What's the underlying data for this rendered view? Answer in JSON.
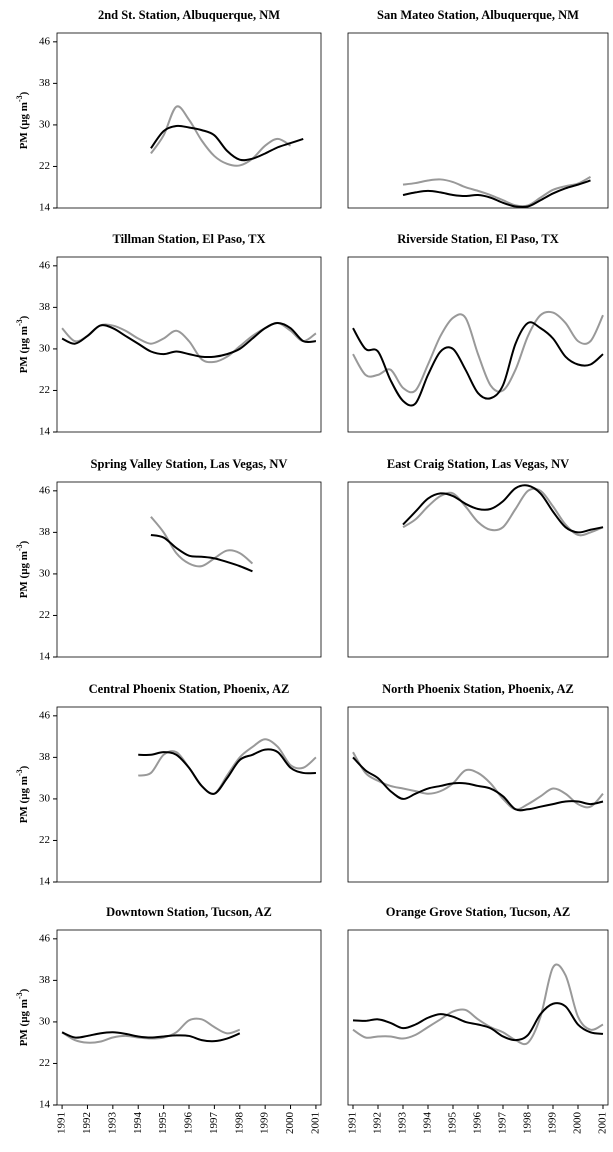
{
  "chart_data": [
    {
      "type": "line",
      "title": "2nd St. Station, Albuquerque, NM",
      "y_label": "PM (µg m",
      "y_label_sup": "-3",
      "y_label_end": ")",
      "x": [
        1991,
        1991.5,
        1992,
        1992.5,
        1993,
        1993.5,
        1994,
        1994.5,
        1995,
        1995.5,
        1996,
        1996.5,
        1997,
        1997.5,
        1998,
        1998.5,
        1999,
        1999.5,
        2000,
        2000.5,
        2001
      ],
      "xlim": [
        1990.8,
        2001.2
      ],
      "ylim": [
        14,
        47.7
      ],
      "yticks": [
        14,
        22,
        30,
        38,
        46
      ],
      "series": [
        {
          "color": "#999999",
          "values": [
            null,
            null,
            null,
            null,
            null,
            null,
            null,
            24.5,
            28,
            33.5,
            31,
            27,
            24,
            22.5,
            22.2,
            23.5,
            26,
            27.3,
            26,
            null,
            null
          ]
        },
        {
          "color": "#000000",
          "values": [
            null,
            null,
            null,
            null,
            null,
            null,
            null,
            25.5,
            28.8,
            29.8,
            29.5,
            29,
            28,
            25,
            23.3,
            23.5,
            24.5,
            25.7,
            26.5,
            27.3,
            null
          ]
        }
      ]
    },
    {
      "type": "line",
      "title": "San Mateo Station, Albuquerque, NM",
      "x": [
        1991,
        1991.5,
        1992,
        1992.5,
        1993,
        1993.5,
        1994,
        1994.5,
        1995,
        1995.5,
        1996,
        1996.5,
        1997,
        1997.5,
        1998,
        1998.5,
        1999,
        1999.5,
        2000,
        2000.5,
        2001
      ],
      "xlim": [
        1990.8,
        2001.2
      ],
      "ylim": [
        14,
        47.7
      ],
      "series": [
        {
          "color": "#999999",
          "values": [
            null,
            null,
            null,
            null,
            18.5,
            18.8,
            19.3,
            19.5,
            19,
            18,
            17.3,
            16.5,
            15.5,
            14.5,
            14.5,
            16,
            17.5,
            18.2,
            18.7,
            20,
            null
          ]
        },
        {
          "color": "#000000",
          "values": [
            null,
            null,
            null,
            null,
            16.5,
            17,
            17.3,
            17,
            16.5,
            16.3,
            16.5,
            16,
            15,
            14.3,
            14.3,
            15.5,
            16.8,
            17.8,
            18.5,
            19.3,
            null
          ]
        }
      ]
    },
    {
      "type": "line",
      "title": "Tillman Station, El Paso, TX",
      "y_label": "PM (µg m",
      "y_label_sup": "-3",
      "y_label_end": ")",
      "x": [
        1991,
        1991.5,
        1992,
        1992.5,
        1993,
        1993.5,
        1994,
        1994.5,
        1995,
        1995.5,
        1996,
        1996.5,
        1997,
        1997.5,
        1998,
        1998.5,
        1999,
        1999.5,
        2000,
        2000.5,
        2001
      ],
      "xlim": [
        1990.8,
        2001.2
      ],
      "ylim": [
        14,
        47.7
      ],
      "yticks": [
        14,
        22,
        30,
        38,
        46
      ],
      "series": [
        {
          "color": "#999999",
          "values": [
            34,
            31.5,
            32.5,
            34.5,
            34.5,
            33.5,
            32,
            31,
            32,
            33.5,
            31.5,
            28,
            27.5,
            28.5,
            30.5,
            32.5,
            34,
            35,
            33.5,
            31.5,
            33
          ]
        },
        {
          "color": "#000000",
          "values": [
            32,
            31,
            32.5,
            34.5,
            34,
            32.5,
            31,
            29.5,
            29,
            29.5,
            29,
            28.5,
            28.5,
            29,
            30,
            32,
            34,
            35,
            34,
            31.5,
            31.5
          ]
        }
      ]
    },
    {
      "type": "line",
      "title": "Riverside Station, El Paso, TX",
      "x": [
        1991,
        1991.5,
        1992,
        1992.5,
        1993,
        1993.5,
        1994,
        1994.5,
        1995,
        1995.5,
        1996,
        1996.5,
        1997,
        1997.5,
        1998,
        1998.5,
        1999,
        1999.5,
        2000,
        2000.5,
        2001
      ],
      "xlim": [
        1990.8,
        2001.2
      ],
      "ylim": [
        14,
        47.7
      ],
      "series": [
        {
          "color": "#999999",
          "values": [
            29,
            25,
            25,
            26,
            22.5,
            22,
            27,
            32.5,
            36,
            36,
            29,
            23,
            22,
            26,
            32.5,
            36.5,
            37,
            35,
            31.5,
            31.5,
            36.5
          ]
        },
        {
          "color": "#000000",
          "values": [
            34,
            30,
            29.5,
            24,
            20,
            19.5,
            25,
            29.5,
            30,
            26,
            21.5,
            20.5,
            23,
            31,
            35,
            34,
            32,
            28.5,
            27,
            27,
            29
          ]
        }
      ]
    },
    {
      "type": "line",
      "title": "Spring Valley Station, Las Vegas, NV",
      "y_label": "PM (µg m",
      "y_label_sup": "-3",
      "y_label_end": ")",
      "x": [
        1991,
        1991.5,
        1992,
        1992.5,
        1993,
        1993.5,
        1994,
        1994.5,
        1995,
        1995.5,
        1996,
        1996.5,
        1997,
        1997.5,
        1998,
        1998.5,
        1999,
        1999.5,
        2000,
        2000.5,
        2001
      ],
      "xlim": [
        1990.8,
        2001.2
      ],
      "ylim": [
        14,
        47.7
      ],
      "yticks": [
        14,
        22,
        30,
        38,
        46
      ],
      "series": [
        {
          "color": "#999999",
          "values": [
            null,
            null,
            null,
            null,
            null,
            null,
            null,
            41,
            38,
            34,
            32,
            31.5,
            33,
            34.5,
            34,
            32,
            null,
            null,
            null,
            null,
            null
          ]
        },
        {
          "color": "#000000",
          "values": [
            null,
            null,
            null,
            null,
            null,
            null,
            null,
            37.5,
            37,
            35,
            33.5,
            33.3,
            33,
            32.3,
            31.5,
            30.5,
            null,
            null,
            null,
            null,
            null
          ]
        }
      ]
    },
    {
      "type": "line",
      "title": "East Craig Station, Las Vegas, NV",
      "x": [
        1991,
        1991.5,
        1992,
        1992.5,
        1993,
        1993.5,
        1994,
        1994.5,
        1995,
        1995.5,
        1996,
        1996.5,
        1997,
        1997.5,
        1998,
        1998.5,
        1999,
        1999.5,
        2000,
        2000.5,
        2001
      ],
      "xlim": [
        1990.8,
        2001.2
      ],
      "ylim": [
        14,
        47.7
      ],
      "series": [
        {
          "color": "#999999",
          "values": [
            null,
            null,
            null,
            null,
            39,
            40.5,
            43,
            45,
            45.5,
            43,
            40,
            38.5,
            39,
            42.5,
            46,
            46,
            43,
            39.5,
            37.5,
            38,
            39
          ]
        },
        {
          "color": "#000000",
          "values": [
            null,
            null,
            null,
            null,
            39.5,
            42,
            44.5,
            45.5,
            45,
            43.5,
            42.5,
            42.5,
            44,
            46.5,
            47,
            45.5,
            42,
            39,
            38,
            38.5,
            39
          ]
        }
      ]
    },
    {
      "type": "line",
      "title": "Central Phoenix Station, Phoenix, AZ",
      "y_label": "PM (µg m",
      "y_label_sup": "-3",
      "y_label_end": ")",
      "x": [
        1991,
        1991.5,
        1992,
        1992.5,
        1993,
        1993.5,
        1994,
        1994.5,
        1995,
        1995.5,
        1996,
        1996.5,
        1997,
        1997.5,
        1998,
        1998.5,
        1999,
        1999.5,
        2000,
        2000.5,
        2001
      ],
      "xlim": [
        1990.8,
        2001.2
      ],
      "ylim": [
        14,
        47.7
      ],
      "yticks": [
        14,
        22,
        30,
        38,
        46
      ],
      "series": [
        {
          "color": "#999999",
          "values": [
            null,
            null,
            null,
            null,
            null,
            null,
            34.5,
            35,
            38.5,
            39,
            36,
            32.5,
            31,
            34.5,
            38,
            40,
            41.5,
            40,
            36.5,
            36,
            38
          ]
        },
        {
          "color": "#000000",
          "values": [
            null,
            null,
            null,
            null,
            null,
            null,
            38.5,
            38.5,
            39,
            38.5,
            36,
            32.5,
            31,
            34,
            37.5,
            38.5,
            39.5,
            39,
            36,
            35,
            35
          ]
        }
      ]
    },
    {
      "type": "line",
      "title": "North Phoenix Station, Phoenix, AZ",
      "x": [
        1991,
        1991.5,
        1992,
        1992.5,
        1993,
        1993.5,
        1994,
        1994.5,
        1995,
        1995.5,
        1996,
        1996.5,
        1997,
        1997.5,
        1998,
        1998.5,
        1999,
        1999.5,
        2000,
        2000.5,
        2001
      ],
      "xlim": [
        1990.8,
        2001.2
      ],
      "ylim": [
        14,
        47.7
      ],
      "series": [
        {
          "color": "#999999",
          "values": [
            39,
            35,
            33.5,
            32.5,
            32,
            31.5,
            31,
            31.5,
            33,
            35.5,
            35,
            33,
            30,
            28,
            29,
            30.5,
            32,
            31,
            29,
            28.5,
            31
          ]
        },
        {
          "color": "#000000",
          "values": [
            38,
            35.5,
            34,
            31.5,
            30,
            31,
            32,
            32.5,
            33,
            33,
            32.5,
            32,
            30.5,
            28,
            28,
            28.5,
            29,
            29.5,
            29.5,
            29,
            29.5
          ]
        }
      ]
    },
    {
      "type": "line",
      "title": "Downtown Station, Tucson, AZ",
      "y_label": "PM (µg m",
      "y_label_sup": "-3",
      "y_label_end": ")",
      "x": [
        1991,
        1991.5,
        1992,
        1992.5,
        1993,
        1993.5,
        1994,
        1994.5,
        1995,
        1995.5,
        1996,
        1996.5,
        1997,
        1997.5,
        1998,
        1998.5,
        1999,
        1999.5,
        2000,
        2000.5,
        2001
      ],
      "xlim": [
        1990.8,
        2001.2
      ],
      "ylim": [
        14,
        47.7
      ],
      "yticks": [
        14,
        22,
        30,
        38,
        46
      ],
      "xticks": [
        1991,
        1992,
        1993,
        1994,
        1995,
        1996,
        1997,
        1998,
        1999,
        2000,
        2001
      ],
      "series": [
        {
          "color": "#999999",
          "values": [
            28,
            26.5,
            26,
            26.2,
            27,
            27.3,
            27,
            26.8,
            27,
            28,
            30.3,
            30.5,
            29,
            27.8,
            28.5,
            null,
            null,
            null,
            null,
            null,
            null
          ]
        },
        {
          "color": "#000000",
          "values": [
            28,
            27,
            27.3,
            27.8,
            28,
            27.7,
            27.2,
            27,
            27.2,
            27.4,
            27.3,
            26.5,
            26.3,
            26.8,
            27.8,
            null,
            null,
            null,
            null,
            null,
            null
          ]
        }
      ]
    },
    {
      "type": "line",
      "title": "Orange Grove Station, Tucson, AZ",
      "x": [
        1991,
        1991.5,
        1992,
        1992.5,
        1993,
        1993.5,
        1994,
        1994.5,
        1995,
        1995.5,
        1996,
        1996.5,
        1997,
        1997.5,
        1998,
        1998.5,
        1999,
        1999.5,
        2000,
        2000.5,
        2001
      ],
      "xlim": [
        1990.8,
        2001.2
      ],
      "ylim": [
        14,
        47.7
      ],
      "xticks": [
        1991,
        1992,
        1993,
        1994,
        1995,
        1996,
        1997,
        1998,
        1999,
        2000,
        2001
      ],
      "series": [
        {
          "color": "#999999",
          "values": [
            28.5,
            27,
            27.2,
            27.2,
            26.8,
            27.5,
            29,
            30.5,
            32,
            32.3,
            30.5,
            29,
            28,
            26.5,
            26,
            31,
            40.5,
            39,
            31,
            28.5,
            29.5
          ]
        },
        {
          "color": "#000000",
          "values": [
            30.3,
            30.2,
            30.5,
            29.8,
            28.8,
            29.5,
            30.8,
            31.5,
            31,
            30,
            29.5,
            28.8,
            27.2,
            26.5,
            27.5,
            31.5,
            33.5,
            33,
            29.5,
            28,
            27.7
          ]
        }
      ]
    }
  ]
}
